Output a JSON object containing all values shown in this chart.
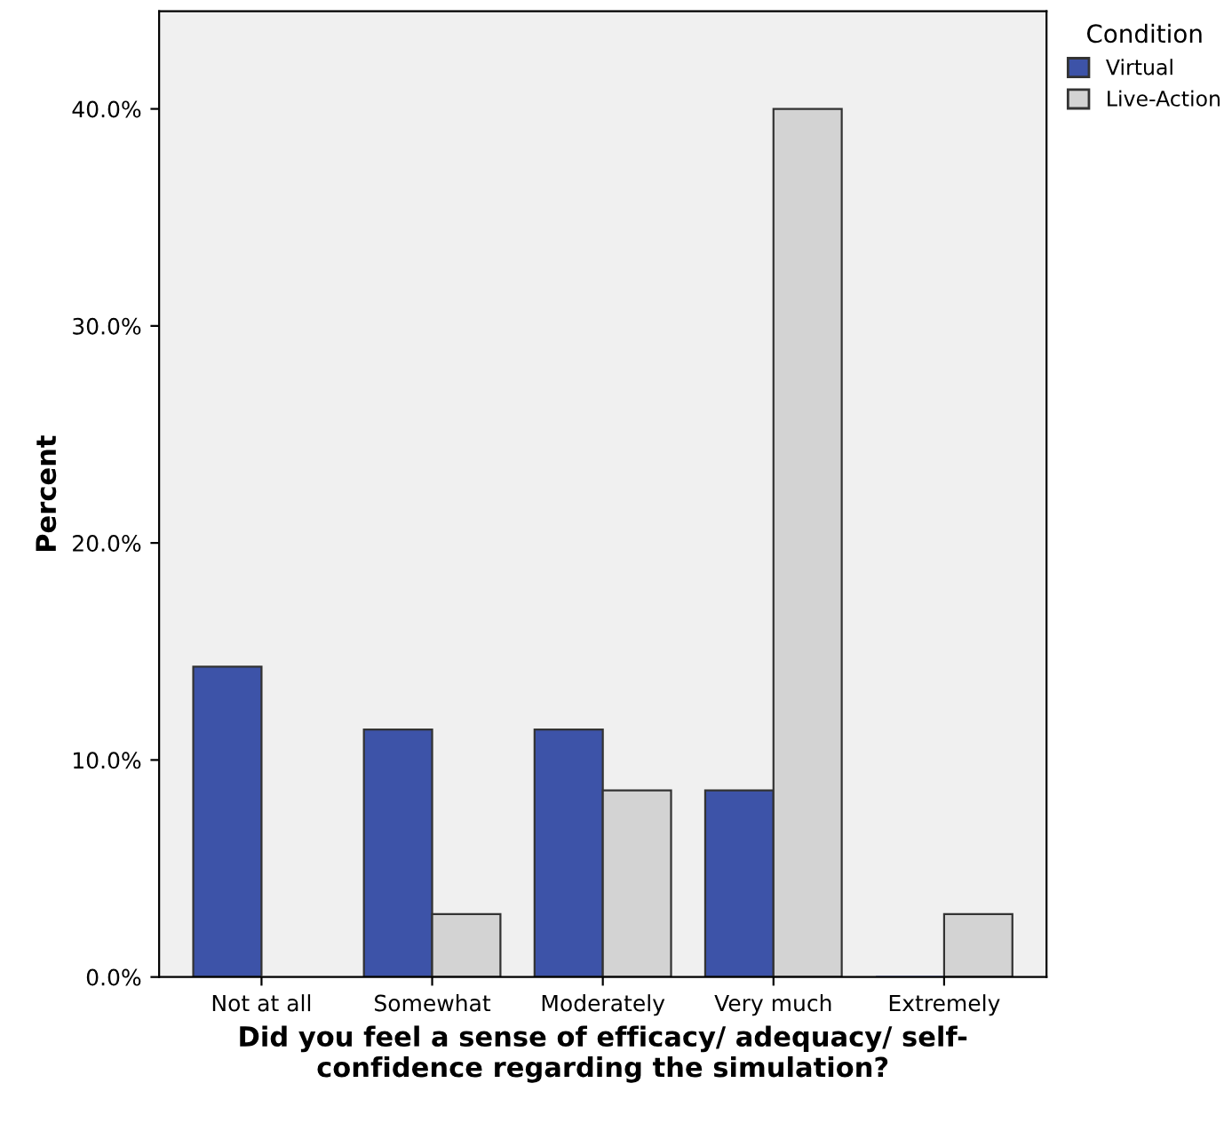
{
  "chart_data": {
    "type": "bar",
    "xlabel": "Did you feel a sense of efficacy/ adequacy/ self-\nconfidence regarding the simulation?",
    "ylabel": "Percent",
    "legend_title": "Condition",
    "categories": [
      "Not at all",
      "Somewhat",
      "Moderately",
      "Very much",
      "Extremely"
    ],
    "series": [
      {
        "name": "Virtual",
        "color": "#3d53a8",
        "values": [
          14.3,
          11.4,
          11.4,
          8.6,
          0
        ]
      },
      {
        "name": "Live-Action",
        "color": "#d3d3d3",
        "values": [
          0,
          2.9,
          8.6,
          40.0,
          2.9
        ]
      }
    ],
    "ylim": [
      0,
      44.5
    ],
    "yticks": [
      {
        "value": 0,
        "label": "0.0%"
      },
      {
        "value": 10,
        "label": "10.0%"
      },
      {
        "value": 20,
        "label": "20.0%"
      },
      {
        "value": 30,
        "label": "30.0%"
      },
      {
        "value": 40,
        "label": "40.0%"
      }
    ],
    "grid": false,
    "legend": "top right"
  }
}
